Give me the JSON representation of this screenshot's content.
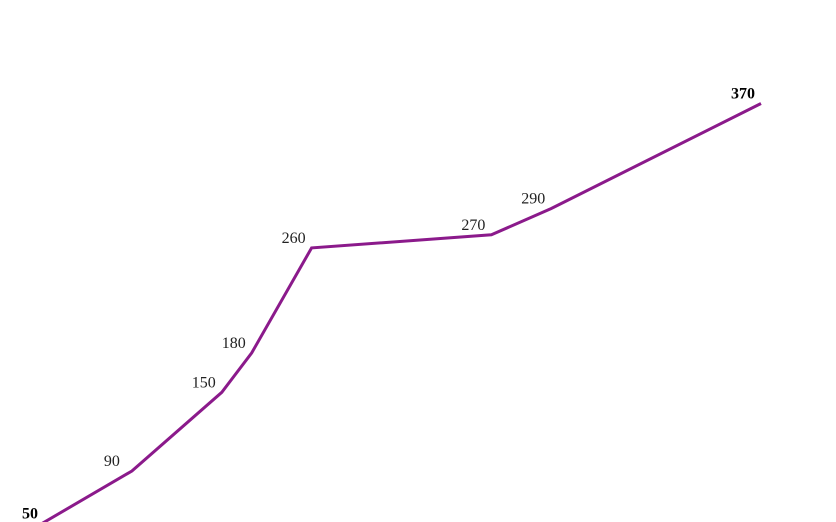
{
  "chart_data": {
    "type": "line",
    "title": "",
    "xlabel": "",
    "ylabel": "",
    "grid": false,
    "legend": "none",
    "x": [
      0,
      1,
      2,
      2.333,
      3,
      5,
      5.667,
      8
    ],
    "series": [
      {
        "values": [
          50,
          90,
          150,
          180,
          260,
          270,
          290,
          370
        ],
        "labels": [
          "50",
          "90",
          "150",
          "180",
          "260",
          "270",
          "290",
          "370"
        ],
        "color": "#8B1A8B"
      }
    ]
  }
}
